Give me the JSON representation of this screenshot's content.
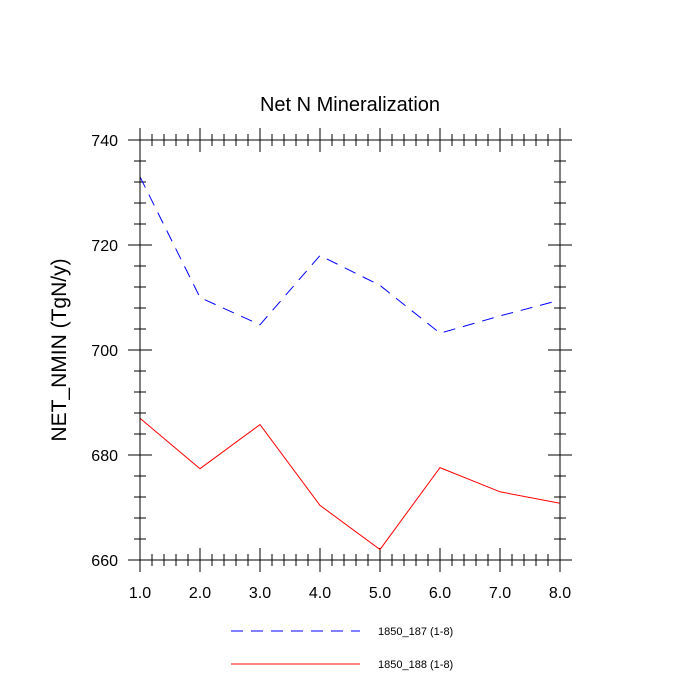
{
  "chart_data": {
    "type": "line",
    "title": "Net N Mineralization",
    "xlabel": "",
    "ylabel": "NET_NMIN  (TgN/y)",
    "x": [
      1.0,
      2.0,
      3.0,
      4.0,
      5.0,
      6.0,
      7.0,
      8.0
    ],
    "xlim": [
      1.0,
      8.0
    ],
    "ylim": [
      660,
      740
    ],
    "x_ticks": [
      1.0,
      2.0,
      3.0,
      4.0,
      5.0,
      6.0,
      7.0,
      8.0
    ],
    "x_tick_labels": [
      "1.0",
      "2.0",
      "3.0",
      "4.0",
      "5.0",
      "6.0",
      "7.0",
      "8.0"
    ],
    "y_ticks": [
      660,
      680,
      700,
      720,
      740
    ],
    "y_tick_labels": [
      "660",
      "680",
      "700",
      "720",
      "740"
    ],
    "grid": false,
    "legend_position": "bottom",
    "series": [
      {
        "name": "1850_187 (1-8)",
        "color": "#0000ff",
        "style": "dashed",
        "values": [
          733.0,
          710.0,
          704.8,
          718.0,
          712.3,
          703.2,
          706.5,
          709.5
        ]
      },
      {
        "name": "1850_188 (1-8)",
        "color": "#ff0000",
        "style": "solid",
        "values": [
          687.0,
          677.4,
          685.8,
          670.4,
          662.0,
          677.6,
          673.0,
          670.8
        ]
      }
    ]
  }
}
